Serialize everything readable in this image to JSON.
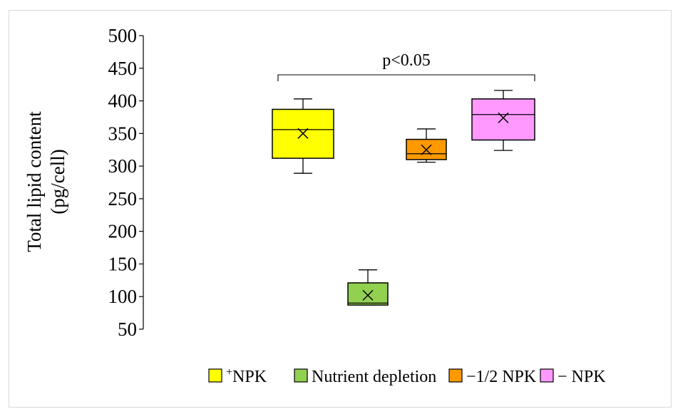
{
  "chart_data": {
    "type": "box",
    "ylabel_line1": "Total lipid content",
    "ylabel_line2": "(pg/cell)",
    "ylim": [
      50,
      500
    ],
    "yticks": [
      50,
      100,
      150,
      200,
      250,
      300,
      350,
      400,
      450,
      500
    ],
    "legend_position": "bottom",
    "significance": {
      "label": "p<0.05",
      "from": 0,
      "to": 3
    },
    "series": [
      {
        "name": "+NPK",
        "legend_prefix": "+",
        "legend_main": "NPK",
        "color": "#ffff00",
        "min": 289,
        "q1": 312,
        "median": 356,
        "q3": 387,
        "max": 403,
        "mean": 350
      },
      {
        "name": "Nutrient depletion",
        "legend_prefix": "",
        "legend_main": "Nutrient depletion",
        "color": "#92d050",
        "min": 87,
        "q1": 87,
        "median": 90,
        "q3": 121,
        "max": 141,
        "mean": 102
      },
      {
        "name": "−1/2 NPK",
        "legend_prefix": "",
        "legend_main": "−1/2 NPK",
        "color": "#ff9900",
        "min": 306,
        "q1": 310,
        "median": 319,
        "q3": 341,
        "max": 357,
        "mean": 325
      },
      {
        "name": "− NPK",
        "legend_prefix": "",
        "legend_main": "− NPK",
        "color": "#ff99ff",
        "min": 324,
        "q1": 340,
        "median": 379,
        "q3": 403,
        "max": 416,
        "mean": 374
      }
    ]
  }
}
